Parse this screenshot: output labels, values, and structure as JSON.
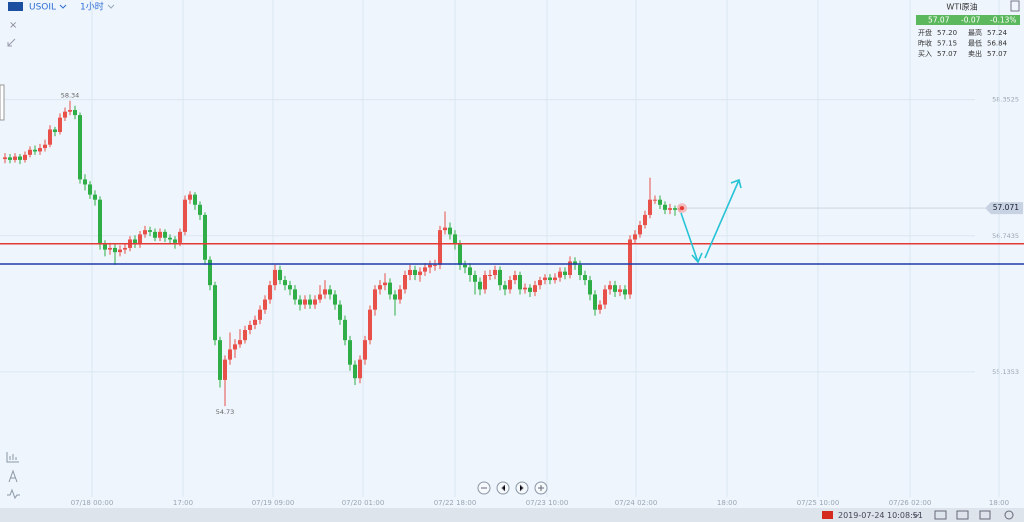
{
  "header": {
    "symbol": "USOIL",
    "interval": "1小时"
  },
  "quote": {
    "name": "WTI原油",
    "price": "57.07",
    "change": "-0.07",
    "change_pct": "-0.13%",
    "rows": [
      [
        "开盘",
        "57.20",
        "最高",
        "57.24"
      ],
      [
        "昨收",
        "57.15",
        "最低",
        "56.84"
      ],
      [
        "买入",
        "57.07",
        "卖出",
        "57.07"
      ]
    ]
  },
  "chart_data": {
    "type": "candlestick",
    "candles": [
      [
        57.65,
        57.72,
        57.6,
        57.67
      ],
      [
        57.67,
        57.71,
        57.6,
        57.64
      ],
      [
        57.64,
        57.72,
        57.61,
        57.68
      ],
      [
        57.68,
        57.71,
        57.59,
        57.64
      ],
      [
        57.64,
        57.74,
        57.61,
        57.7
      ],
      [
        57.7,
        57.8,
        57.67,
        57.76
      ],
      [
        57.76,
        57.81,
        57.7,
        57.74
      ],
      [
        57.74,
        57.83,
        57.7,
        57.78
      ],
      [
        57.78,
        57.88,
        57.74,
        57.82
      ],
      [
        57.82,
        58.05,
        57.79,
        58.0
      ],
      [
        58.0,
        58.03,
        57.92,
        57.97
      ],
      [
        57.97,
        58.19,
        57.94,
        58.14
      ],
      [
        58.14,
        58.26,
        58.1,
        58.21
      ],
      [
        58.21,
        58.34,
        58.17,
        58.23
      ],
      [
        58.23,
        58.28,
        58.12,
        58.17
      ],
      [
        58.17,
        58.2,
        57.36,
        57.41
      ],
      [
        57.41,
        57.47,
        57.28,
        57.35
      ],
      [
        57.35,
        57.39,
        57.18,
        57.23
      ],
      [
        57.23,
        57.28,
        57.1,
        57.17
      ],
      [
        57.17,
        57.21,
        56.58,
        56.64
      ],
      [
        56.64,
        56.69,
        56.5,
        56.58
      ],
      [
        56.58,
        56.66,
        56.52,
        56.6
      ],
      [
        56.6,
        56.64,
        56.4,
        56.55
      ],
      [
        56.55,
        56.63,
        56.5,
        56.58
      ],
      [
        56.58,
        56.65,
        56.53,
        56.6
      ],
      [
        56.6,
        56.74,
        56.56,
        56.7
      ],
      [
        56.7,
        56.75,
        56.6,
        56.64
      ],
      [
        56.64,
        56.8,
        56.6,
        56.76
      ],
      [
        56.76,
        56.86,
        56.72,
        56.81
      ],
      [
        56.81,
        56.85,
        56.74,
        56.79
      ],
      [
        56.79,
        56.83,
        56.68,
        56.72
      ],
      [
        56.72,
        56.83,
        56.68,
        56.79
      ],
      [
        56.79,
        56.82,
        56.67,
        56.72
      ],
      [
        56.72,
        56.76,
        56.64,
        56.7
      ],
      [
        56.7,
        56.74,
        56.59,
        56.66
      ],
      [
        56.66,
        56.83,
        56.62,
        56.79
      ],
      [
        56.79,
        57.22,
        56.75,
        57.17
      ],
      [
        57.17,
        57.27,
        57.12,
        57.23
      ],
      [
        57.23,
        57.26,
        57.05,
        57.11
      ],
      [
        57.11,
        57.15,
        56.93,
        56.99
      ],
      [
        56.99,
        57.02,
        56.4,
        56.46
      ],
      [
        56.46,
        56.5,
        56.1,
        56.16
      ],
      [
        56.16,
        56.2,
        55.45,
        55.51
      ],
      [
        55.51,
        55.55,
        54.95,
        55.04
      ],
      [
        55.04,
        55.33,
        54.73,
        55.28
      ],
      [
        55.28,
        55.6,
        55.22,
        55.4
      ],
      [
        55.4,
        55.52,
        55.3,
        55.46
      ],
      [
        55.46,
        55.64,
        55.42,
        55.51
      ],
      [
        55.51,
        55.68,
        55.47,
        55.63
      ],
      [
        55.63,
        55.74,
        55.58,
        55.69
      ],
      [
        55.69,
        55.8,
        55.64,
        55.75
      ],
      [
        55.75,
        55.92,
        55.7,
        55.87
      ],
      [
        55.87,
        56.04,
        55.82,
        55.99
      ],
      [
        55.99,
        56.21,
        55.94,
        56.16
      ],
      [
        56.16,
        56.4,
        56.1,
        56.34
      ],
      [
        56.34,
        56.39,
        56.17,
        56.22
      ],
      [
        56.22,
        56.27,
        56.1,
        56.16
      ],
      [
        56.16,
        56.21,
        56.04,
        56.11
      ],
      [
        56.11,
        56.16,
        55.93,
        55.99
      ],
      [
        55.99,
        56.04,
        55.86,
        55.93
      ],
      [
        55.93,
        56.04,
        55.88,
        55.99
      ],
      [
        55.99,
        56.05,
        55.88,
        55.93
      ],
      [
        55.93,
        56.04,
        55.88,
        55.99
      ],
      [
        55.99,
        56.16,
        55.95,
        56.05
      ],
      [
        56.05,
        56.22,
        56.0,
        56.11
      ],
      [
        56.11,
        56.16,
        55.99,
        56.05
      ],
      [
        56.05,
        56.1,
        55.87,
        55.93
      ],
      [
        55.93,
        55.98,
        55.69,
        55.75
      ],
      [
        55.75,
        55.8,
        55.45,
        55.51
      ],
      [
        55.51,
        55.56,
        55.15,
        55.22
      ],
      [
        55.22,
        55.27,
        54.98,
        55.06
      ],
      [
        55.06,
        55.33,
        55.0,
        55.28
      ],
      [
        55.28,
        55.56,
        55.22,
        55.51
      ],
      [
        55.51,
        55.92,
        55.46,
        55.87
      ],
      [
        55.87,
        56.16,
        55.8,
        56.11
      ],
      [
        56.11,
        56.22,
        56.05,
        56.16
      ],
      [
        56.16,
        56.3,
        56.1,
        56.19
      ],
      [
        56.19,
        56.24,
        55.99,
        56.05
      ],
      [
        56.05,
        56.1,
        55.8,
        55.99
      ],
      [
        55.99,
        56.16,
        55.94,
        56.11
      ],
      [
        56.11,
        56.33,
        56.06,
        56.28
      ],
      [
        56.28,
        56.4,
        56.22,
        56.34
      ],
      [
        56.34,
        56.39,
        56.22,
        56.28
      ],
      [
        56.28,
        56.37,
        56.2,
        56.32
      ],
      [
        56.32,
        56.42,
        56.27,
        56.37
      ],
      [
        56.37,
        56.45,
        56.3,
        56.4
      ],
      [
        56.4,
        56.46,
        56.33,
        56.4
      ],
      [
        56.4,
        56.86,
        56.35,
        56.81
      ],
      [
        56.81,
        57.03,
        56.76,
        56.84
      ],
      [
        56.84,
        56.9,
        56.7,
        56.76
      ],
      [
        56.76,
        56.81,
        56.58,
        56.64
      ],
      [
        56.64,
        56.69,
        56.34,
        56.4
      ],
      [
        56.4,
        56.45,
        56.3,
        56.37
      ],
      [
        56.37,
        56.42,
        56.2,
        56.28
      ],
      [
        56.28,
        56.33,
        56.05,
        56.2
      ],
      [
        56.2,
        56.25,
        56.04,
        56.11
      ],
      [
        56.11,
        56.33,
        56.06,
        56.28
      ],
      [
        56.28,
        56.34,
        56.22,
        56.28
      ],
      [
        56.28,
        56.39,
        56.23,
        56.34
      ],
      [
        56.34,
        56.38,
        56.1,
        56.16
      ],
      [
        56.16,
        56.21,
        56.04,
        56.11
      ],
      [
        56.11,
        56.27,
        56.06,
        56.22
      ],
      [
        56.22,
        56.33,
        56.17,
        56.28
      ],
      [
        56.28,
        56.32,
        56.05,
        56.11
      ],
      [
        56.11,
        56.18,
        56.06,
        56.13
      ],
      [
        56.13,
        56.17,
        56.02,
        56.08
      ],
      [
        56.08,
        56.21,
        56.03,
        56.16
      ],
      [
        56.16,
        56.26,
        56.11,
        56.22
      ],
      [
        56.22,
        56.29,
        56.17,
        56.25
      ],
      [
        56.25,
        56.29,
        56.17,
        56.22
      ],
      [
        56.22,
        56.3,
        56.18,
        56.25
      ],
      [
        56.25,
        56.37,
        56.2,
        56.32
      ],
      [
        56.32,
        56.37,
        56.23,
        56.28
      ],
      [
        56.28,
        56.5,
        56.24,
        56.44
      ],
      [
        56.44,
        56.49,
        56.34,
        56.4
      ],
      [
        56.4,
        56.45,
        56.22,
        56.28
      ],
      [
        56.28,
        56.33,
        56.16,
        56.22
      ],
      [
        56.22,
        56.27,
        55.98,
        56.05
      ],
      [
        56.05,
        56.1,
        55.8,
        55.87
      ],
      [
        55.87,
        55.98,
        55.82,
        55.93
      ],
      [
        55.93,
        56.16,
        55.88,
        56.11
      ],
      [
        56.11,
        56.21,
        56.05,
        56.16
      ],
      [
        56.16,
        56.21,
        56.02,
        56.08
      ],
      [
        56.08,
        56.16,
        56.03,
        56.11
      ],
      [
        56.11,
        56.16,
        55.99,
        56.05
      ],
      [
        56.05,
        56.75,
        56.0,
        56.7
      ],
      [
        56.7,
        56.81,
        56.65,
        56.76
      ],
      [
        56.76,
        56.92,
        56.72,
        56.87
      ],
      [
        56.87,
        57.04,
        56.83,
        56.99
      ],
      [
        56.99,
        57.43,
        56.95,
        57.17
      ],
      [
        57.17,
        57.22,
        57.12,
        57.17
      ],
      [
        57.17,
        57.22,
        57.06,
        57.11
      ],
      [
        57.11,
        57.15,
        57.0,
        57.05
      ],
      [
        57.05,
        57.12,
        57.0,
        57.07
      ],
      [
        57.07,
        57.1,
        56.98,
        57.05
      ],
      [
        57.05,
        57.1,
        57.02,
        57.07
      ]
    ],
    "up_color": "#e8504a",
    "down_color": "#2fae48",
    "ylim": [
      53.68,
      59.53
    ],
    "yticks": [
      55.1353,
      56.7435,
      58.3525
    ],
    "xlim": [
      -1,
      203.8
    ],
    "xticks": [
      {
        "value": 17.4,
        "label": "07/18 00:00"
      },
      {
        "value": 35.6,
        "label": "17:00"
      },
      {
        "value": 53.6,
        "label": "07/19 09:00"
      },
      {
        "value": 71.6,
        "label": "07/20 01:00"
      },
      {
        "value": 90,
        "label": "07/22 18:00"
      },
      {
        "value": 108.4,
        "label": "07/23 10:00"
      },
      {
        "value": 126.2,
        "label": "07/24 02:00"
      },
      {
        "value": 144.4,
        "label": "18:00"
      },
      {
        "value": 162.6,
        "label": "07/25 10:00"
      },
      {
        "value": 181,
        "label": "07/26 02:00"
      },
      {
        "value": 198.8,
        "label": "18:00"
      }
    ],
    "grid": true,
    "high_label": 58.34,
    "low_label": 54.73,
    "last_price": 57.071,
    "hlines": [
      {
        "value": 56.65,
        "color": "#e53935"
      },
      {
        "value": 56.41,
        "color": "#1f3ba8"
      }
    ]
  },
  "status": {
    "time": "2019-07-24 10:08:51"
  }
}
